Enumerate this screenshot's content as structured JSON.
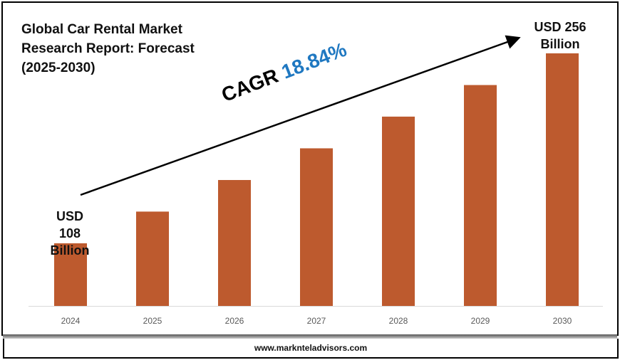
{
  "chart_data": {
    "type": "bar",
    "title": "Global Car Rental Market\nResearch Report: Forecast\n(2025-2030)",
    "categories": [
      "2024",
      "2025",
      "2026",
      "2027",
      "2028",
      "2029",
      "2030"
    ],
    "values": [
      108,
      132.7,
      157.3,
      182,
      206.7,
      231.3,
      256
    ],
    "unit": "USD Billion",
    "first_label": {
      "line1": "USD 108",
      "line2": "Billion"
    },
    "last_label": {
      "line1": "USD 256",
      "line2": "Billion"
    },
    "cagr": {
      "prefix": "CAGR",
      "value": "18.84%"
    },
    "bar_color": "#BD5A2E",
    "cagr_color": "#1F78C1",
    "grid": false,
    "xlabel": "",
    "ylabel": ""
  },
  "footer": {
    "website": "www.marknteladvisors.com"
  }
}
